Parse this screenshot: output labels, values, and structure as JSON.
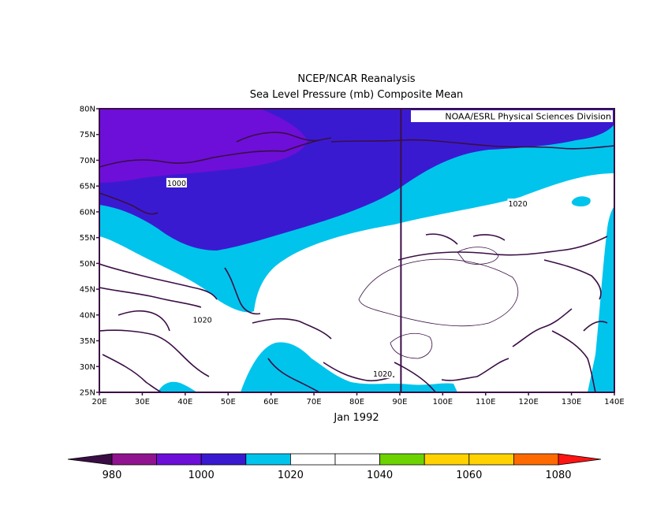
{
  "title": "NCEP/NCAR Reanalysis",
  "subtitle": "Sea Level Pressure (mb) Composite Mean",
  "credit": "NOAA/ESRL Physical Sciences Division",
  "period_label": "Jan 1992",
  "map": {
    "projection": "cylindrical equidistant",
    "lon_range": [
      20,
      140
    ],
    "lat_range": [
      25,
      80
    ],
    "x_ticks": [
      "20E",
      "30E",
      "40E",
      "50E",
      "60E",
      "70E",
      "80E",
      "90E",
      "100E",
      "110E",
      "120E",
      "130E",
      "140E"
    ],
    "y_ticks": [
      "80N",
      "75N",
      "70N",
      "65N",
      "60N",
      "55N",
      "50N",
      "45N",
      "40N",
      "35N",
      "30N",
      "25N"
    ],
    "reference_meridian": "90E"
  },
  "contour_labels": [
    {
      "text": "1000",
      "lon": 38,
      "lat": 65.5
    },
    {
      "text": "1020",
      "lon": 117.5,
      "lat": 61.5
    },
    {
      "text": "1020",
      "lon": 44,
      "lat": 39
    },
    {
      "text": "1020",
      "lon": 86,
      "lat": 28.5
    }
  ],
  "colorbar": {
    "labels": [
      "980",
      "1000",
      "1020",
      "1040",
      "1060",
      "1080"
    ],
    "bins": [
      {
        "range": "<980",
        "color": "#3a0e44"
      },
      {
        "range": "980-990",
        "color": "#90148f"
      },
      {
        "range": "990-1000",
        "color": "#6d0fd8"
      },
      {
        "range": "1000-1010",
        "color": "#3a1ad0"
      },
      {
        "range": "1010-1020",
        "color": "#00c4ec"
      },
      {
        "range": "1020-1030",
        "color": "#ffffff"
      },
      {
        "range": "1030-1040",
        "color": "#ffffff"
      },
      {
        "range": "1040-1050",
        "color": "#6cd200"
      },
      {
        "range": "1050-1060",
        "color": "#ffd200"
      },
      {
        "range": "1060-1070",
        "color": "#ffd200"
      },
      {
        "range": "1070-1080",
        "color": "#ff6a00"
      },
      {
        "range": ">1080",
        "color": "#ff1414"
      }
    ]
  },
  "colors": {
    "purple_region": "#6d0fd8",
    "blue_region": "#3a1ad0",
    "cyan_region": "#00c4ec",
    "white_region": "#ffffff",
    "coastline": "#3a0e44"
  }
}
